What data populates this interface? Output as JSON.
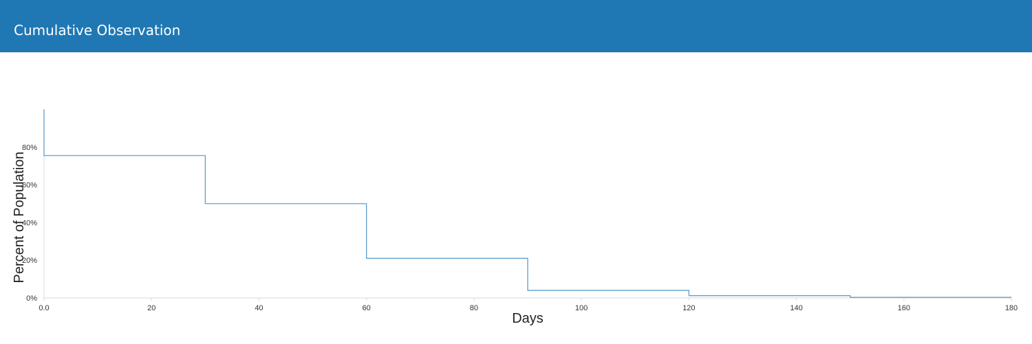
{
  "header": {
    "title": "Cumulative Observation"
  },
  "colors": {
    "header_bg": "#1f78b4",
    "line": "#5b9fd0",
    "axis": "#d9d9d9"
  },
  "chart_data": {
    "type": "line",
    "step": true,
    "title": "",
    "xlabel": "Days",
    "ylabel": "Percent of Population",
    "xlim": [
      0,
      180
    ],
    "ylim": [
      0,
      100
    ],
    "x_ticks": [
      0,
      20,
      40,
      60,
      80,
      100,
      120,
      140,
      160,
      180
    ],
    "x_tick_labels": [
      "0.0",
      "20",
      "40",
      "60",
      "80",
      "100",
      "120",
      "140",
      "160",
      "180"
    ],
    "y_ticks": [
      0,
      20,
      40,
      60,
      80
    ],
    "y_tick_labels": [
      "0%",
      "20%",
      "40%",
      "60%",
      "80%"
    ],
    "grid": false,
    "series": [
      {
        "x": [
          0,
          0,
          30,
          60,
          90,
          120,
          150,
          180
        ],
        "y": [
          100,
          75.5,
          50,
          21,
          4,
          1.2,
          0.3,
          0.3
        ]
      }
    ]
  }
}
